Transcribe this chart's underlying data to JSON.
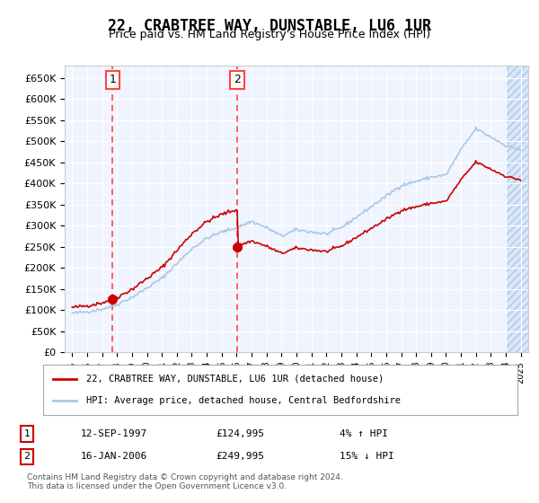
{
  "title": "22, CRABTREE WAY, DUNSTABLE, LU6 1UR",
  "subtitle": "Price paid vs. HM Land Registry's House Price Index (HPI)",
  "property_label": "22, CRABTREE WAY, DUNSTABLE, LU6 1UR (detached house)",
  "hpi_label": "HPI: Average price, detached house, Central Bedfordshire",
  "footnote": "Contains HM Land Registry data © Crown copyright and database right 2024.\nThis data is licensed under the Open Government Licence v3.0.",
  "sale1_date": "12-SEP-1997",
  "sale1_price": 124995,
  "sale1_pct": "4% ↑ HPI",
  "sale2_date": "16-JAN-2006",
  "sale2_price": 249995,
  "sale2_pct": "15% ↓ HPI",
  "sale1_x": 1997.7,
  "sale2_x": 2006.04,
  "ylim_min": 0,
  "ylim_max": 680000,
  "xlim_min": 1994.5,
  "xlim_max": 2025.5,
  "bg_color": "#ddeeff",
  "plot_bg": "#f0f4ff",
  "hpi_color": "#aac8e8",
  "property_color": "#cc0000",
  "dashed_color": "#ff4444",
  "hatch_color": "#aac8e8"
}
